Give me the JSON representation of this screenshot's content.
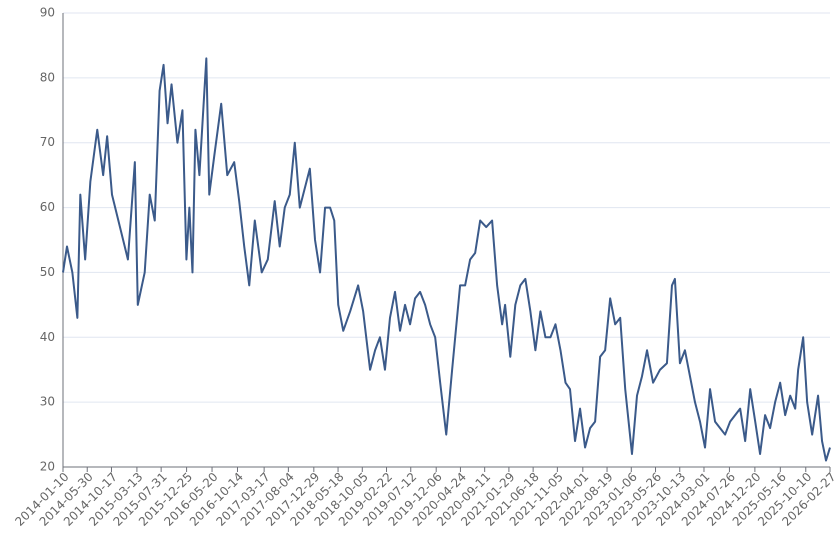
{
  "chart_data": {
    "type": "line",
    "x": [
      "2014-01-10",
      "2014-02-02",
      "2014-03-05",
      "2014-04-03",
      "2014-04-20",
      "2014-05-18",
      "2014-06-17",
      "2014-07-27",
      "2014-08-30",
      "2014-09-22",
      "2014-10-20",
      "2014-12-05",
      "2015-01-20",
      "2015-03-01",
      "2015-03-18",
      "2015-04-27",
      "2015-05-26",
      "2015-06-24",
      "2015-07-22",
      "2015-08-14",
      "2015-09-06",
      "2015-09-29",
      "2015-11-02",
      "2015-12-01",
      "2015-12-24",
      "2016-01-10",
      "2016-01-28",
      "2016-02-14",
      "2016-03-08",
      "2016-04-17",
      "2016-05-04",
      "2016-06-02",
      "2016-07-12",
      "2016-08-16",
      "2016-09-25",
      "2016-10-24",
      "2016-11-22",
      "2016-12-21",
      "2017-01-22",
      "2017-03-03",
      "2017-04-07",
      "2017-05-17",
      "2017-06-15",
      "2017-07-14",
      "2017-08-12",
      "2017-09-10",
      "2017-10-09",
      "2017-11-07",
      "2017-12-06",
      "2018-01-05",
      "2018-02-03",
      "2018-03-04",
      "2018-04-02",
      "2018-04-26",
      "2018-05-19",
      "2018-06-17",
      "2018-07-27",
      "2018-09-11",
      "2018-10-10",
      "2018-11-19",
      "2018-12-18",
      "2019-01-15",
      "2019-02-13",
      "2019-03-14",
      "2019-04-12",
      "2019-05-11",
      "2019-06-09",
      "2019-07-08",
      "2019-08-06",
      "2019-09-04",
      "2019-10-03",
      "2019-11-01",
      "2019-11-30",
      "2019-12-29",
      "2020-02-02",
      "2020-03-07",
      "2020-04-22",
      "2020-05-21",
      "2020-06-19",
      "2020-07-18",
      "2020-08-16",
      "2020-09-20",
      "2020-10-24",
      "2020-11-22",
      "2020-12-21",
      "2021-01-07",
      "2021-02-06",
      "2021-03-07",
      "2021-04-05",
      "2021-05-04",
      "2021-06-02",
      "2021-07-01",
      "2021-07-30",
      "2021-08-28",
      "2021-09-26",
      "2021-10-25",
      "2021-11-23",
      "2021-12-22",
      "2022-01-17",
      "2022-02-15",
      "2022-03-16",
      "2022-04-14",
      "2022-05-13",
      "2022-06-11",
      "2022-07-10",
      "2022-08-08",
      "2022-09-06",
      "2022-10-05",
      "2022-11-03",
      "2022-12-02",
      "2023-01-10",
      "2023-02-08",
      "2023-03-09",
      "2023-04-07",
      "2023-05-12",
      "2023-06-21",
      "2023-07-31",
      "2023-08-29",
      "2023-09-15",
      "2023-10-14",
      "2023-11-12",
      "2023-12-11",
      "2024-01-09",
      "2024-02-07",
      "2024-03-07",
      "2024-04-05",
      "2024-05-04",
      "2024-06-02",
      "2024-07-01",
      "2024-07-30",
      "2024-09-26",
      "2024-10-25",
      "2024-11-23",
      "2024-12-22",
      "2025-01-19",
      "2025-02-17",
      "2025-03-18",
      "2025-04-16",
      "2025-05-15",
      "2025-06-13",
      "2025-07-12",
      "2025-08-10",
      "2025-08-27",
      "2025-09-25",
      "2025-10-18",
      "2025-11-16",
      "2025-12-20",
      "2026-01-12",
      "2026-02-04",
      "2026-02-27"
    ],
    "values": [
      50,
      54,
      50,
      43,
      62,
      52,
      64,
      72,
      65,
      71,
      62,
      57,
      52,
      67,
      45,
      50,
      62,
      58,
      78,
      82,
      73,
      79,
      70,
      75,
      52,
      60,
      50,
      72,
      65,
      83,
      62,
      68,
      76,
      65,
      67,
      61,
      54,
      48,
      58,
      50,
      52,
      61,
      54,
      60,
      62,
      70,
      60,
      63,
      66,
      55,
      50,
      60,
      60,
      58,
      45,
      41,
      44,
      48,
      44,
      35,
      38,
      40,
      35,
      43,
      47,
      41,
      45,
      42,
      46,
      47,
      45,
      42,
      40,
      33,
      25,
      35,
      48,
      48,
      52,
      53,
      58,
      57,
      58,
      48,
      42,
      45,
      37,
      45,
      48,
      49,
      44,
      38,
      44,
      40,
      40,
      42,
      38,
      33,
      32,
      24,
      29,
      23,
      26,
      27,
      37,
      38,
      46,
      42,
      43,
      32,
      22,
      31,
      34,
      38,
      33,
      35,
      36,
      48,
      49,
      36,
      38,
      34,
      30,
      27,
      23,
      32,
      27,
      26,
      25,
      27,
      29,
      24,
      32,
      27,
      22,
      28,
      26,
      30,
      33,
      28,
      31,
      29,
      35,
      40,
      30,
      25,
      31,
      24,
      21,
      23
    ],
    "color": "#3b5a8a",
    "xlim": [
      "2014-01-10",
      "2026-02-27"
    ],
    "xticks": [
      "2014-01-10",
      "2014-05-30",
      "2014-10-17",
      "2015-03-13",
      "2015-07-31",
      "2015-12-25",
      "2016-05-20",
      "2016-10-14",
      "2017-03-17",
      "2017-08-04",
      "2017-12-29",
      "2018-05-18",
      "2018-10-05",
      "2019-02-22",
      "2019-07-12",
      "2019-12-06",
      "2020-04-24",
      "2020-09-11",
      "2021-01-29",
      "2021-06-18",
      "2021-11-05",
      "2022-04-01",
      "2022-08-19",
      "2023-01-06",
      "2023-05-26",
      "2023-10-13",
      "2024-03-01",
      "2024-07-26",
      "2024-12-20",
      "2025-05-16",
      "2025-10-10",
      "2026-02-27"
    ],
    "ylim": [
      20,
      90
    ],
    "yticks": [
      20,
      30,
      40,
      50,
      60,
      70,
      80,
      90
    ],
    "grid": true
  }
}
